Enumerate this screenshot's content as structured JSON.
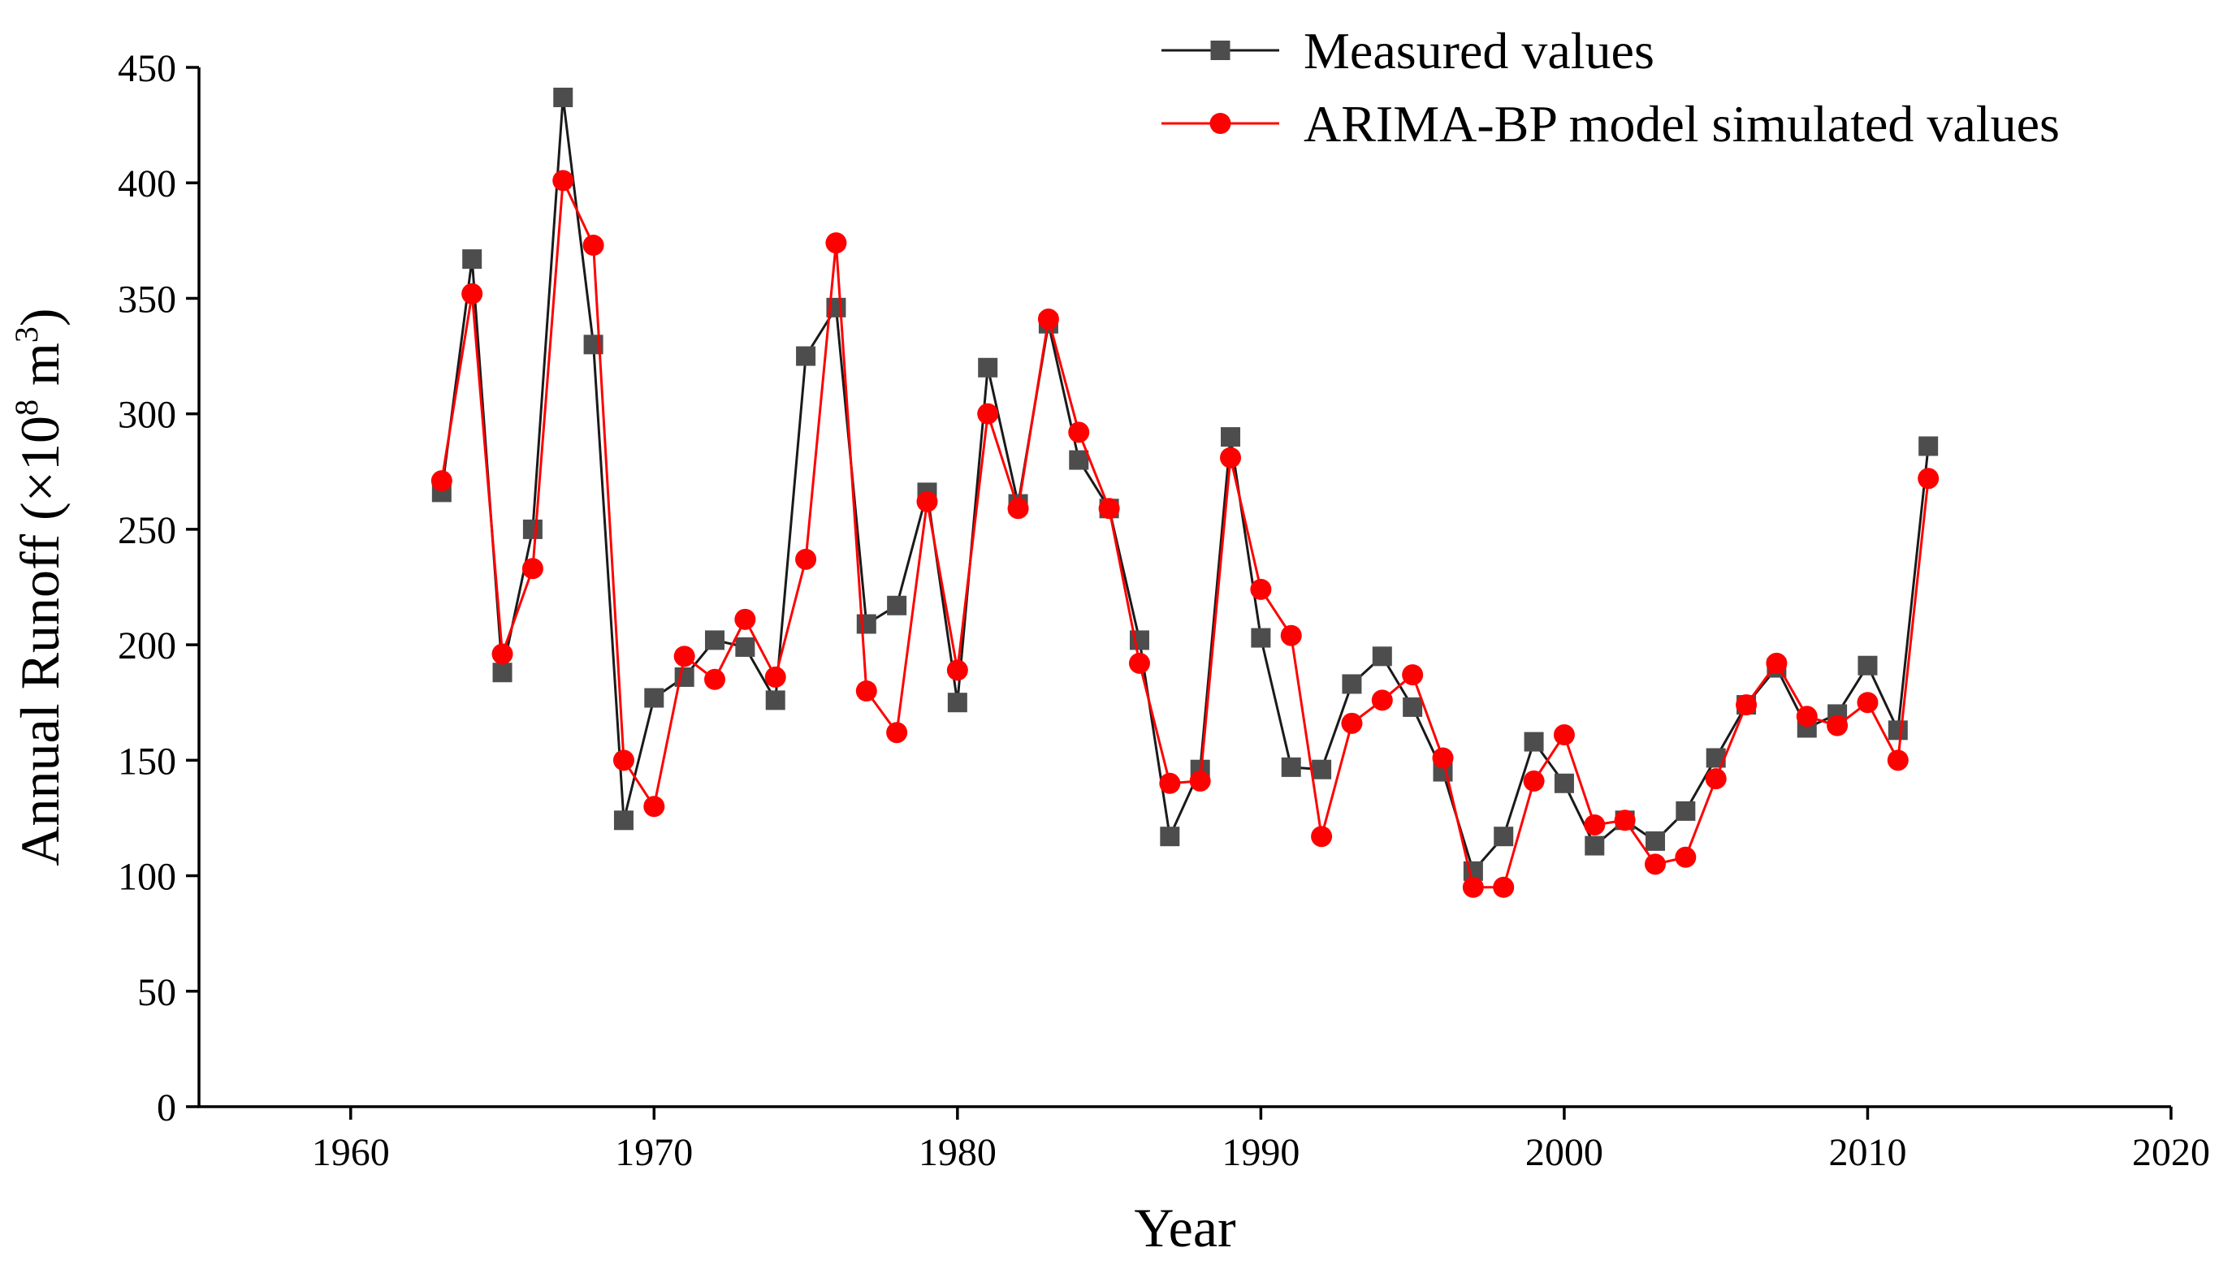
{
  "chart_data": {
    "type": "line",
    "title": "",
    "xlabel": "Year",
    "ylabel": "Annual Runoff (×10",
    "ylabel_sup1": "8",
    "ylabel_mid": " m",
    "ylabel_sup2": "3",
    "ylabel_end": ")",
    "xlim": [
      1955,
      2020
    ],
    "ylim": [
      0,
      450
    ],
    "xticks": [
      1960,
      1970,
      1980,
      1990,
      2000,
      2010,
      2020
    ],
    "yticks": [
      0,
      50,
      100,
      150,
      200,
      250,
      300,
      350,
      400,
      450
    ],
    "grid": false,
    "legend_position": "top-right",
    "x": [
      1963,
      1964,
      1965,
      1966,
      1967,
      1968,
      1969,
      1970,
      1971,
      1972,
      1973,
      1974,
      1975,
      1976,
      1977,
      1978,
      1979,
      1980,
      1981,
      1982,
      1983,
      1984,
      1985,
      1986,
      1987,
      1988,
      1989,
      1990,
      1991,
      1992,
      1993,
      1994,
      1995,
      1996,
      1997,
      1998,
      1999,
      2000,
      2001,
      2002,
      2003,
      2004,
      2005,
      2006,
      2007,
      2008,
      2009,
      2010,
      2011,
      2012
    ],
    "series": [
      {
        "name": "Measured values",
        "color": "#1a1a1a",
        "marker_color": "#4d4d4d",
        "marker": "square",
        "values": [
          266,
          367,
          188,
          250,
          437,
          330,
          124,
          177,
          186,
          202,
          199,
          176,
          325,
          346,
          209,
          217,
          266,
          175,
          320,
          261,
          339,
          280,
          259,
          202,
          117,
          146,
          290,
          203,
          147,
          146,
          183,
          195,
          173,
          145,
          102,
          117,
          158,
          140,
          113,
          124,
          115,
          128,
          151,
          174,
          190,
          164,
          170,
          191,
          163,
          286
        ]
      },
      {
        "name": "ARIMA-BP model simulated values",
        "color": "#ff0000",
        "marker_color": "#ff0000",
        "marker": "circle",
        "values": [
          271,
          352,
          196,
          233,
          401,
          373,
          150,
          130,
          195,
          185,
          211,
          186,
          237,
          374,
          180,
          162,
          262,
          189,
          300,
          259,
          341,
          292,
          259,
          192,
          140,
          141,
          281,
          224,
          204,
          117,
          166,
          176,
          187,
          151,
          95,
          95,
          141,
          161,
          122,
          124,
          105,
          108,
          142,
          174,
          192,
          169,
          165,
          175,
          150,
          272
        ]
      }
    ]
  }
}
